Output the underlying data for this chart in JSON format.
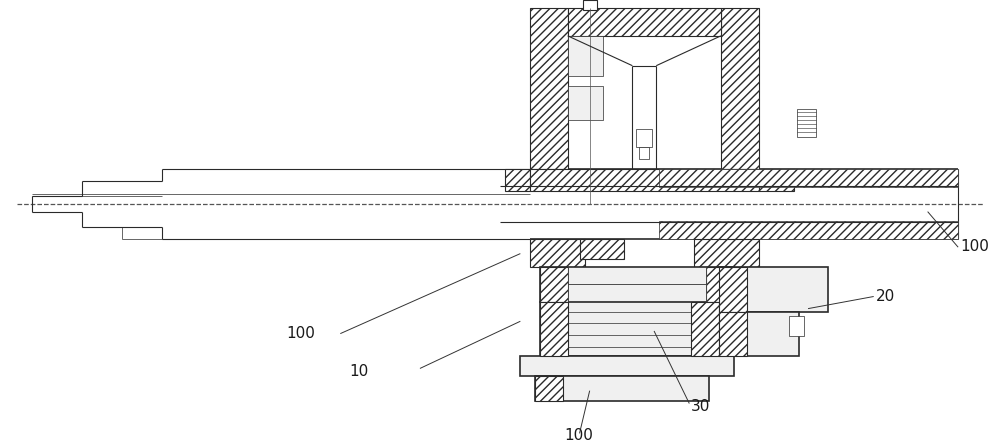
{
  "bg_color": "#ffffff",
  "line_color": "#2a2a2a",
  "fig_width": 10.0,
  "fig_height": 4.45,
  "dpi": 100,
  "label_fontsize": 11
}
